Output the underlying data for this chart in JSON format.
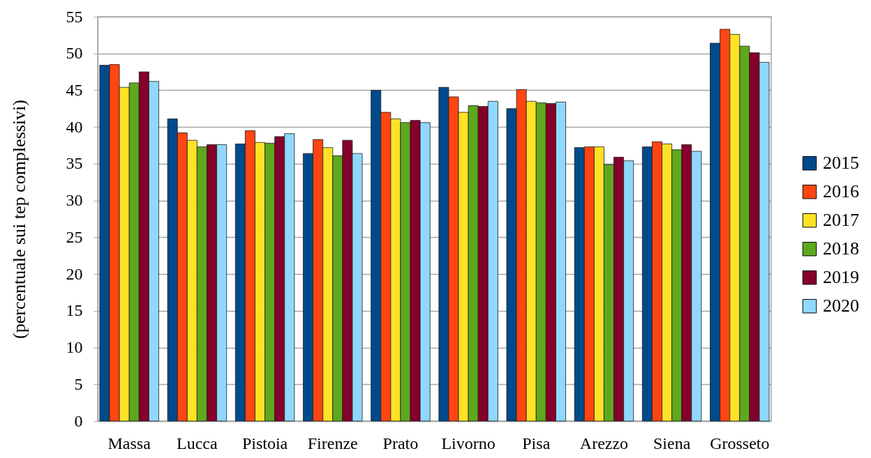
{
  "chart_data": {
    "type": "bar",
    "ylabel": "(percentuale sui tep complessivi)",
    "categories": [
      "Massa",
      "Lucca",
      "Pistoia",
      "Firenze",
      "Prato",
      "Livorno",
      "Pisa",
      "Arezzo",
      "Siena",
      "Grosseto"
    ],
    "series": [
      {
        "name": "2015",
        "color": "#004a8c",
        "values": [
          48.4,
          41.1,
          37.7,
          36.4,
          45.0,
          45.4,
          42.5,
          37.2,
          37.3,
          51.4
        ]
      },
      {
        "name": "2016",
        "color": "#ff4612",
        "values": [
          48.5,
          39.2,
          39.5,
          38.3,
          42.0,
          44.1,
          45.1,
          37.3,
          38.0,
          53.3
        ]
      },
      {
        "name": "2017",
        "color": "#ffe225",
        "values": [
          45.4,
          38.2,
          37.9,
          37.2,
          41.1,
          42.0,
          43.5,
          37.3,
          37.7,
          52.6
        ]
      },
      {
        "name": "2018",
        "color": "#5ea81e",
        "values": [
          46.0,
          37.3,
          37.8,
          36.1,
          40.6,
          42.9,
          43.3,
          34.9,
          36.9,
          51.0
        ]
      },
      {
        "name": "2019",
        "color": "#85002a",
        "values": [
          47.5,
          37.6,
          38.7,
          38.2,
          40.9,
          42.8,
          43.2,
          35.9,
          37.6,
          50.1
        ]
      },
      {
        "name": "2020",
        "color": "#8fd8ff",
        "values": [
          46.2,
          37.6,
          39.1,
          36.4,
          40.6,
          43.5,
          43.4,
          35.4,
          36.7,
          48.8
        ]
      }
    ],
    "ylim": [
      0,
      55
    ],
    "yticks": [
      0,
      5,
      10,
      15,
      20,
      25,
      30,
      35,
      40,
      45,
      50,
      55
    ],
    "grid": "y",
    "legend": "right"
  }
}
